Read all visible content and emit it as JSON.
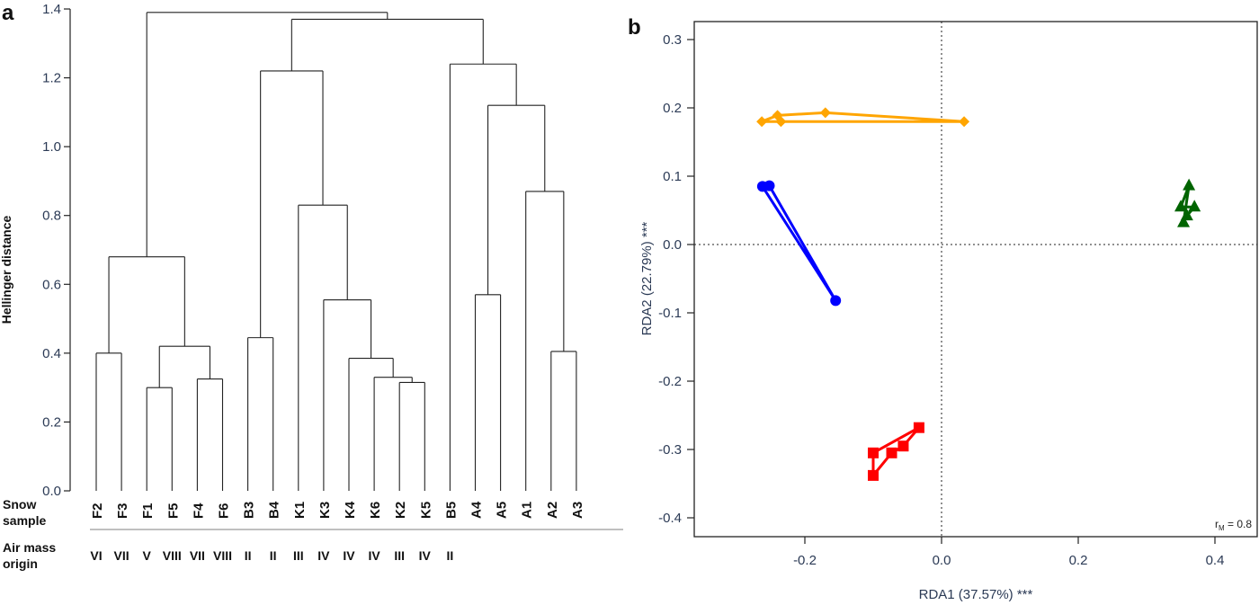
{
  "chart_data": [
    {
      "type": "dendrogram",
      "panel_label": "a",
      "ylabel": "Hellinger distance",
      "ylim": [
        0,
        1.4
      ],
      "yticks": [
        "0.0",
        "0.2",
        "0.4",
        "0.6",
        "0.8",
        "1.0",
        "1.2",
        "1.4"
      ],
      "row_labels": {
        "snow": [
          "Snow",
          "sample"
        ],
        "air": [
          "Air mass",
          "origin"
        ]
      },
      "leaves": [
        "F2",
        "F3",
        "F1",
        "F5",
        "F4",
        "F6",
        "B3",
        "B4",
        "K1",
        "K3",
        "K4",
        "K6",
        "K2",
        "K5",
        "B5",
        "A4",
        "A5",
        "A1",
        "A2",
        "A3"
      ],
      "air_mass_origin": [
        "VI",
        "VII",
        "V",
        "VIII",
        "VII",
        "VIII",
        "II",
        "II",
        "III",
        "IV",
        "IV",
        "IV",
        "III",
        "IV",
        "II"
      ],
      "tree": {
        "h": 1.39,
        "c": [
          {
            "h": 0.68,
            "c": [
              {
                "h": 0.4,
                "c": [
                  "F2",
                  "F3"
                ]
              },
              {
                "h": 0.42,
                "c": [
                  {
                    "h": 0.3,
                    "c": [
                      "F1",
                      "F5"
                    ]
                  },
                  {
                    "h": 0.325,
                    "c": [
                      "F4",
                      "F6"
                    ]
                  }
                ]
              }
            ]
          },
          {
            "h": 1.37,
            "c": [
              {
                "h": 1.22,
                "c": [
                  {
                    "h": 0.445,
                    "c": [
                      "B3",
                      "B4"
                    ]
                  },
                  {
                    "h": 0.83,
                    "c": [
                      "K1",
                      {
                        "h": 0.555,
                        "c": [
                          "K3",
                          {
                            "h": 0.385,
                            "c": [
                              "K4",
                              {
                                "h": 0.33,
                                "c": [
                                  "K6",
                                  {
                                    "h": 0.315,
                                    "c": [
                                      "K2",
                                      "K5"
                                    ]
                                  }
                                ]
                              }
                            ]
                          }
                        ]
                      }
                    ]
                  }
                ]
              },
              {
                "h": 1.24,
                "c": [
                  "B5",
                  {
                    "h": 1.12,
                    "c": [
                      {
                        "h": 0.57,
                        "c": [
                          "A4",
                          "A5"
                        ]
                      },
                      {
                        "h": 0.87,
                        "c": [
                          "A1",
                          {
                            "h": 0.405,
                            "c": [
                              "A2",
                              "A3"
                            ]
                          }
                        ]
                      }
                    ]
                  }
                ]
              }
            ]
          }
        ]
      }
    },
    {
      "type": "scatter",
      "panel_label": "b",
      "xlabel": "RDA1 (37.57%) ***",
      "ylabel": "RDA2 (22.79%) ***",
      "xlim": [
        -0.36,
        0.46
      ],
      "ylim": [
        -0.43,
        0.35
      ],
      "xticks": [
        "-0.2",
        "0.0",
        "0.2",
        "0.4"
      ],
      "yticks": [
        "0.3",
        "0.2",
        "0.1",
        "0.0",
        "-0.1",
        "-0.2",
        "-0.3",
        "-0.4"
      ],
      "reference_lines": {
        "x": 0,
        "y": 0,
        "style": "dotted"
      },
      "annotation": {
        "r": "r",
        "sub": "M",
        "rest": " = 0.8"
      },
      "series": [
        {
          "color": "#FFA500",
          "marker": "diamond",
          "points": [
            [
              -0.263,
              0.18
            ],
            [
              -0.24,
              0.189
            ],
            [
              -0.17,
              0.193
            ],
            [
              0.033,
              0.18
            ],
            [
              -0.235,
              0.18
            ]
          ]
        },
        {
          "color": "#0000FF",
          "marker": "circle",
          "points": [
            [
              -0.262,
              0.085
            ],
            [
              -0.252,
              0.086
            ],
            [
              -0.155,
              -0.082
            ]
          ]
        },
        {
          "color": "#006400",
          "marker": "triangle",
          "points": [
            [
              0.362,
              0.086
            ],
            [
              0.35,
              0.055
            ],
            [
              0.37,
              0.055
            ],
            [
              0.359,
              0.042
            ],
            [
              0.354,
              0.032
            ]
          ]
        },
        {
          "color": "#FF0000",
          "marker": "square",
          "points": [
            [
              -0.1,
              -0.305
            ],
            [
              -0.1,
              -0.338
            ],
            [
              -0.073,
              -0.305
            ],
            [
              -0.056,
              -0.295
            ],
            [
              -0.033,
              -0.268
            ]
          ]
        }
      ]
    }
  ]
}
